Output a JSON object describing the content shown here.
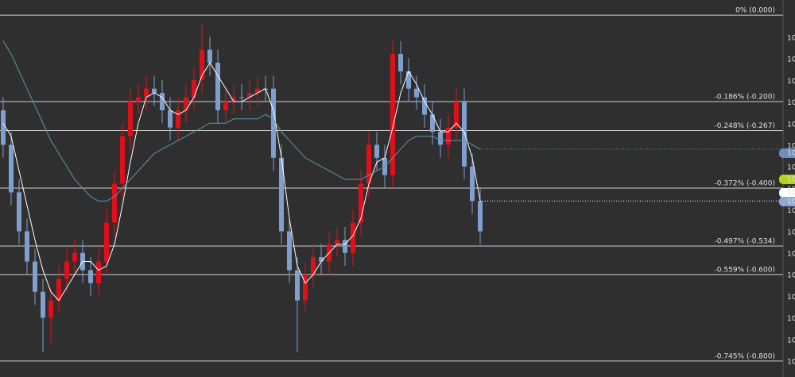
{
  "chart_data": {
    "type": "candlestick",
    "ylim": [
      0.035,
      -0.837
    ],
    "yticks": [
      {
        "value": 0,
        "label": "0% (0.000)"
      },
      {
        "value": -0.2,
        "label": "-0.186% (-0.200)"
      },
      {
        "value": -0.267,
        "label": "-0.248% (-0.267)"
      },
      {
        "value": -0.4,
        "label": "-0.372% (-0.400)"
      },
      {
        "value": -0.534,
        "label": "-0.497% (-0.534)"
      },
      {
        "value": -0.6,
        "label": "-0.559% (-0.600)"
      },
      {
        "value": -0.8,
        "label": "-0.745% (-0.800)"
      }
    ],
    "up_color": "#e0101a",
    "down_color": "#7f9fcf",
    "open": [
      -0.22,
      -0.3,
      -0.41,
      -0.5,
      -0.57,
      -0.64,
      -0.7,
      -0.66,
      -0.61,
      -0.57,
      -0.55,
      -0.59,
      -0.62,
      -0.57,
      -0.48,
      -0.39,
      -0.28,
      -0.2,
      -0.19,
      -0.17,
      -0.18,
      -0.22,
      -0.26,
      -0.22,
      -0.19,
      -0.15,
      -0.08,
      -0.11,
      -0.22,
      -0.2,
      -0.19,
      -0.19,
      -0.18,
      -0.17,
      -0.17,
      -0.33,
      -0.5,
      -0.59,
      -0.66,
      -0.6,
      -0.56,
      -0.57,
      -0.53,
      -0.52,
      -0.55,
      -0.48,
      -0.39,
      -0.3,
      -0.33,
      -0.37,
      -0.09,
      -0.13,
      -0.17,
      -0.19,
      -0.23,
      -0.27,
      -0.3,
      -0.26,
      -0.2,
      -0.35,
      -0.43
    ],
    "high": [
      -0.19,
      -0.27,
      -0.38,
      -0.47,
      -0.54,
      -0.61,
      -0.63,
      -0.58,
      -0.54,
      -0.52,
      -0.52,
      -0.56,
      -0.54,
      -0.45,
      -0.36,
      -0.25,
      -0.17,
      -0.16,
      -0.14,
      -0.14,
      -0.15,
      -0.19,
      -0.19,
      -0.16,
      -0.12,
      -0.02,
      -0.05,
      -0.08,
      -0.17,
      -0.16,
      -0.16,
      -0.15,
      -0.14,
      -0.14,
      -0.14,
      -0.3,
      -0.47,
      -0.56,
      -0.57,
      -0.53,
      -0.53,
      -0.5,
      -0.49,
      -0.49,
      -0.45,
      -0.36,
      -0.27,
      -0.27,
      -0.3,
      -0.06,
      -0.06,
      -0.1,
      -0.14,
      -0.16,
      -0.2,
      -0.24,
      -0.23,
      -0.17,
      -0.17,
      -0.32,
      -0.4
    ],
    "low": [
      -0.33,
      -0.44,
      -0.53,
      -0.6,
      -0.67,
      -0.78,
      -0.76,
      -0.69,
      -0.64,
      -0.6,
      -0.62,
      -0.65,
      -0.65,
      -0.6,
      -0.51,
      -0.42,
      -0.31,
      -0.23,
      -0.22,
      -0.21,
      -0.25,
      -0.29,
      -0.29,
      -0.25,
      -0.22,
      -0.18,
      -0.14,
      -0.25,
      -0.25,
      -0.23,
      -0.22,
      -0.22,
      -0.21,
      -0.2,
      -0.36,
      -0.53,
      -0.62,
      -0.78,
      -0.69,
      -0.63,
      -0.6,
      -0.6,
      -0.56,
      -0.58,
      -0.58,
      -0.51,
      -0.42,
      -0.36,
      -0.4,
      -0.4,
      -0.16,
      -0.2,
      -0.22,
      -0.26,
      -0.3,
      -0.33,
      -0.33,
      -0.29,
      -0.38,
      -0.46,
      -0.53
    ],
    "close": [
      -0.3,
      -0.41,
      -0.5,
      -0.57,
      -0.64,
      -0.7,
      -0.66,
      -0.61,
      -0.57,
      -0.55,
      -0.59,
      -0.62,
      -0.57,
      -0.48,
      -0.39,
      -0.28,
      -0.2,
      -0.19,
      -0.17,
      -0.18,
      -0.22,
      -0.26,
      -0.22,
      -0.19,
      -0.15,
      -0.08,
      -0.11,
      -0.22,
      -0.2,
      -0.19,
      -0.19,
      -0.18,
      -0.17,
      -0.17,
      -0.33,
      -0.5,
      -0.59,
      -0.66,
      -0.6,
      -0.56,
      -0.57,
      -0.53,
      -0.52,
      -0.55,
      -0.48,
      -0.39,
      -0.3,
      -0.33,
      -0.37,
      -0.09,
      -0.13,
      -0.17,
      -0.19,
      -0.23,
      -0.27,
      -0.3,
      -0.26,
      -0.2,
      -0.35,
      -0.43,
      -0.5
    ],
    "series": [
      {
        "color": "#ffffff",
        "values": [
          -0.25,
          -0.28,
          -0.36,
          -0.44,
          -0.52,
          -0.59,
          -0.64,
          -0.66,
          -0.63,
          -0.6,
          -0.57,
          -0.57,
          -0.59,
          -0.58,
          -0.53,
          -0.44,
          -0.34,
          -0.25,
          -0.19,
          -0.18,
          -0.19,
          -0.22,
          -0.23,
          -0.22,
          -0.19,
          -0.14,
          -0.11,
          -0.14,
          -0.17,
          -0.2,
          -0.2,
          -0.19,
          -0.18,
          -0.17,
          -0.22,
          -0.33,
          -0.47,
          -0.58,
          -0.62,
          -0.6,
          -0.57,
          -0.55,
          -0.53,
          -0.53,
          -0.51,
          -0.47,
          -0.39,
          -0.34,
          -0.33,
          -0.26,
          -0.18,
          -0.13,
          -0.16,
          -0.2,
          -0.23,
          -0.27,
          -0.27,
          -0.25,
          -0.27,
          -0.33,
          -0.43
        ]
      },
      {
        "color": "#5b9aa0",
        "values": [
          -0.06,
          -0.09,
          -0.13,
          -0.17,
          -0.21,
          -0.25,
          -0.29,
          -0.32,
          -0.35,
          -0.38,
          -0.4,
          -0.42,
          -0.43,
          -0.43,
          -0.42,
          -0.4,
          -0.38,
          -0.36,
          -0.34,
          -0.32,
          -0.31,
          -0.3,
          -0.29,
          -0.28,
          -0.27,
          -0.26,
          -0.25,
          -0.25,
          -0.25,
          -0.24,
          -0.24,
          -0.24,
          -0.24,
          -0.23,
          -0.24,
          -0.27,
          -0.29,
          -0.31,
          -0.33,
          -0.34,
          -0.35,
          -0.36,
          -0.37,
          -0.38,
          -0.38,
          -0.38,
          -0.37,
          -0.36,
          -0.35,
          -0.33,
          -0.31,
          -0.29,
          -0.28,
          -0.28,
          -0.28,
          -0.29,
          -0.29,
          -0.29,
          -0.29,
          -0.3,
          -0.31
        ]
      }
    ],
    "price_axis_labels": [
      "10",
      "10",
      "10",
      "10",
      "10",
      "10",
      "10",
      "10",
      "10",
      "10",
      "10",
      "10",
      "10",
      "10",
      "10",
      "10"
    ],
    "price_badges": [
      {
        "text": "10",
        "color": "#6f8fbf"
      },
      {
        "text": "10",
        "color": "#b5d41a"
      },
      {
        "text": "10",
        "color": "#ffffff"
      },
      {
        "text": "10",
        "color": "#8fa9d6"
      }
    ]
  }
}
